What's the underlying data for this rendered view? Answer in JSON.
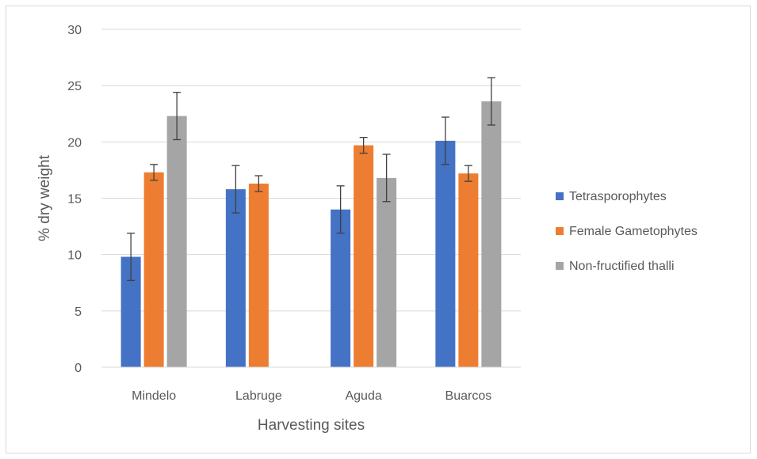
{
  "chart_data": {
    "type": "bar",
    "title": "",
    "xlabel": "Harvesting sites",
    "ylabel": "% dry weight",
    "ylim": [
      0,
      30
    ],
    "yticks": [
      0,
      5,
      10,
      15,
      20,
      25,
      30
    ],
    "grid": true,
    "legend_position": "right",
    "categories": [
      "Mindelo",
      "Labruge",
      "Aguda",
      "Buarcos"
    ],
    "series": [
      {
        "name": "Tetrasporophytes",
        "color": "#4472c4",
        "values": [
          9.8,
          15.8,
          14.0,
          20.1
        ],
        "errors": [
          2.1,
          2.1,
          2.1,
          2.1
        ]
      },
      {
        "name": "Female Gametophytes",
        "color": "#ed7d31",
        "values": [
          17.3,
          16.3,
          19.7,
          17.2
        ],
        "errors": [
          0.7,
          0.7,
          0.7,
          0.7
        ]
      },
      {
        "name": "Non-fructified thalli",
        "color": "#a5a5a5",
        "values": [
          22.3,
          null,
          16.8,
          23.6
        ],
        "errors": [
          2.1,
          null,
          2.1,
          2.1
        ]
      }
    ]
  }
}
